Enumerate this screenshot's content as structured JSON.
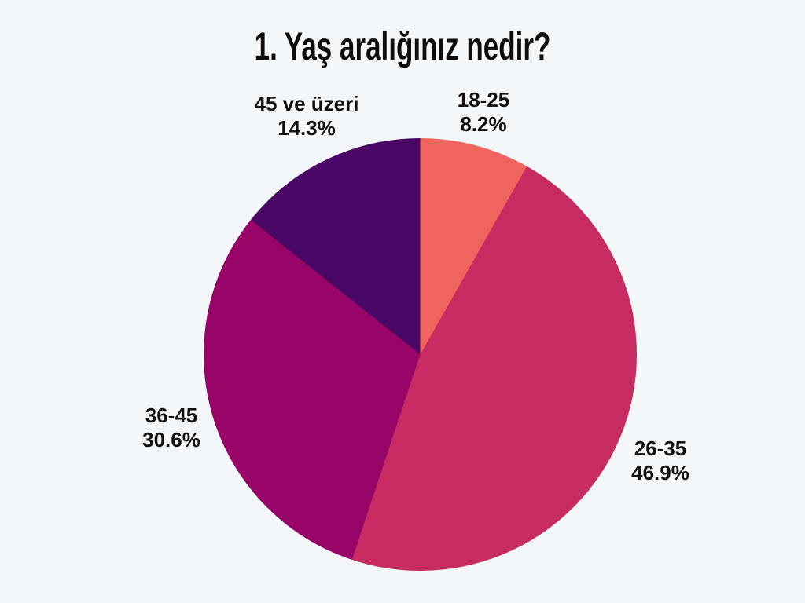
{
  "page": {
    "background": "#F4F7FA",
    "title_color": "#0d0d0d",
    "label_color": "#111111"
  },
  "chart_data": {
    "type": "pie",
    "title": "1. Yaş aralığınız nedir?",
    "direction": "clockwise",
    "start_angle_deg": 0,
    "legend_position": "none",
    "labels_position": "outside",
    "slices": [
      {
        "label": "18-25",
        "value": 8.2,
        "pct_label": "8.2%",
        "color": "#F0645E"
      },
      {
        "label": "26-35",
        "value": 46.9,
        "pct_label": "46.9%",
        "color": "#C62B61"
      },
      {
        "label": "36-45",
        "value": 30.6,
        "pct_label": "30.6%",
        "color": "#980569"
      },
      {
        "label": "45 ve üzeri",
        "value": 14.3,
        "pct_label": "14.3%",
        "color": "#4B0765"
      }
    ]
  }
}
